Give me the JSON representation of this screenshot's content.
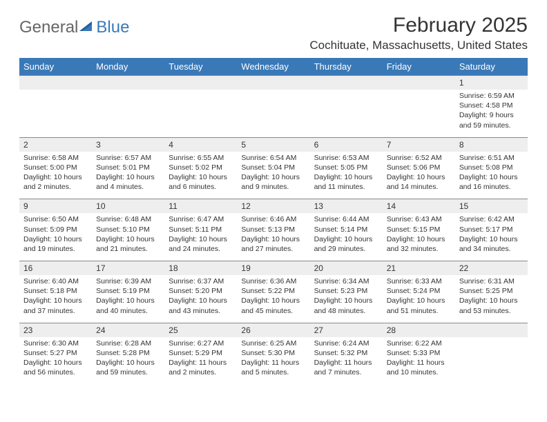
{
  "brand": {
    "general": "General",
    "blue": "Blue"
  },
  "title": "February 2025",
  "location": "Cochituate, Massachusetts, United States",
  "colors": {
    "header_bg": "#3a79b7",
    "header_text": "#ffffff",
    "date_bg": "#eeeeee",
    "text": "#333333",
    "logo_gray": "#666666",
    "logo_blue": "#3a79b7"
  },
  "dayNames": [
    "Sunday",
    "Monday",
    "Tuesday",
    "Wednesday",
    "Thursday",
    "Friday",
    "Saturday"
  ],
  "weeks": [
    {
      "dates": [
        "",
        "",
        "",
        "",
        "",
        "",
        "1"
      ],
      "details": [
        "",
        "",
        "",
        "",
        "",
        "",
        "Sunrise: 6:59 AM\nSunset: 4:58 PM\nDaylight: 9 hours and 59 minutes."
      ]
    },
    {
      "dates": [
        "2",
        "3",
        "4",
        "5",
        "6",
        "7",
        "8"
      ],
      "details": [
        "Sunrise: 6:58 AM\nSunset: 5:00 PM\nDaylight: 10 hours and 2 minutes.",
        "Sunrise: 6:57 AM\nSunset: 5:01 PM\nDaylight: 10 hours and 4 minutes.",
        "Sunrise: 6:55 AM\nSunset: 5:02 PM\nDaylight: 10 hours and 6 minutes.",
        "Sunrise: 6:54 AM\nSunset: 5:04 PM\nDaylight: 10 hours and 9 minutes.",
        "Sunrise: 6:53 AM\nSunset: 5:05 PM\nDaylight: 10 hours and 11 minutes.",
        "Sunrise: 6:52 AM\nSunset: 5:06 PM\nDaylight: 10 hours and 14 minutes.",
        "Sunrise: 6:51 AM\nSunset: 5:08 PM\nDaylight: 10 hours and 16 minutes."
      ]
    },
    {
      "dates": [
        "9",
        "10",
        "11",
        "12",
        "13",
        "14",
        "15"
      ],
      "details": [
        "Sunrise: 6:50 AM\nSunset: 5:09 PM\nDaylight: 10 hours and 19 minutes.",
        "Sunrise: 6:48 AM\nSunset: 5:10 PM\nDaylight: 10 hours and 21 minutes.",
        "Sunrise: 6:47 AM\nSunset: 5:11 PM\nDaylight: 10 hours and 24 minutes.",
        "Sunrise: 6:46 AM\nSunset: 5:13 PM\nDaylight: 10 hours and 27 minutes.",
        "Sunrise: 6:44 AM\nSunset: 5:14 PM\nDaylight: 10 hours and 29 minutes.",
        "Sunrise: 6:43 AM\nSunset: 5:15 PM\nDaylight: 10 hours and 32 minutes.",
        "Sunrise: 6:42 AM\nSunset: 5:17 PM\nDaylight: 10 hours and 34 minutes."
      ]
    },
    {
      "dates": [
        "16",
        "17",
        "18",
        "19",
        "20",
        "21",
        "22"
      ],
      "details": [
        "Sunrise: 6:40 AM\nSunset: 5:18 PM\nDaylight: 10 hours and 37 minutes.",
        "Sunrise: 6:39 AM\nSunset: 5:19 PM\nDaylight: 10 hours and 40 minutes.",
        "Sunrise: 6:37 AM\nSunset: 5:20 PM\nDaylight: 10 hours and 43 minutes.",
        "Sunrise: 6:36 AM\nSunset: 5:22 PM\nDaylight: 10 hours and 45 minutes.",
        "Sunrise: 6:34 AM\nSunset: 5:23 PM\nDaylight: 10 hours and 48 minutes.",
        "Sunrise: 6:33 AM\nSunset: 5:24 PM\nDaylight: 10 hours and 51 minutes.",
        "Sunrise: 6:31 AM\nSunset: 5:25 PM\nDaylight: 10 hours and 53 minutes."
      ]
    },
    {
      "dates": [
        "23",
        "24",
        "25",
        "26",
        "27",
        "28",
        ""
      ],
      "details": [
        "Sunrise: 6:30 AM\nSunset: 5:27 PM\nDaylight: 10 hours and 56 minutes.",
        "Sunrise: 6:28 AM\nSunset: 5:28 PM\nDaylight: 10 hours and 59 minutes.",
        "Sunrise: 6:27 AM\nSunset: 5:29 PM\nDaylight: 11 hours and 2 minutes.",
        "Sunrise: 6:25 AM\nSunset: 5:30 PM\nDaylight: 11 hours and 5 minutes.",
        "Sunrise: 6:24 AM\nSunset: 5:32 PM\nDaylight: 11 hours and 7 minutes.",
        "Sunrise: 6:22 AM\nSunset: 5:33 PM\nDaylight: 11 hours and 10 minutes.",
        ""
      ]
    }
  ]
}
